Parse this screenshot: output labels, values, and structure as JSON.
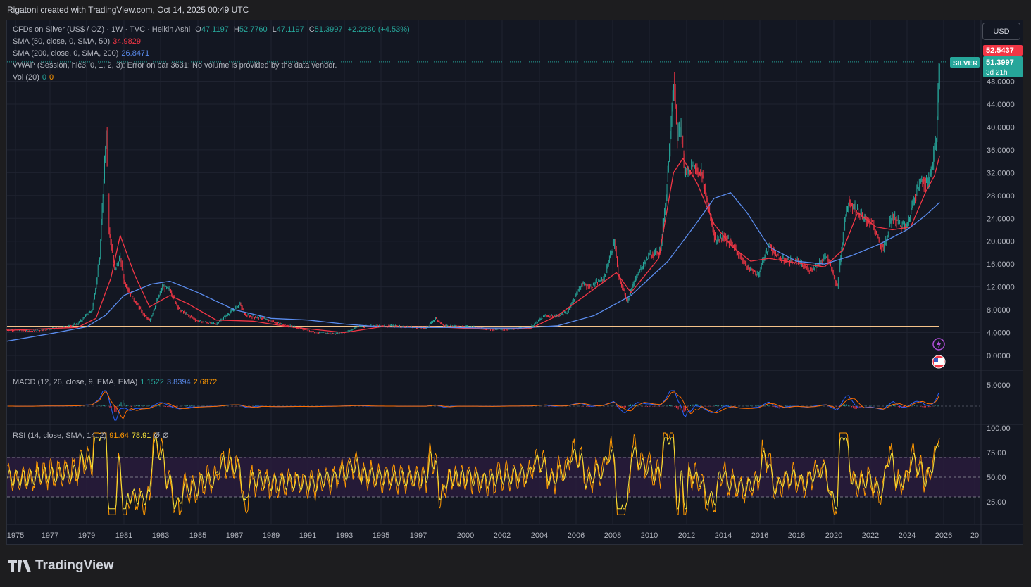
{
  "header": {
    "attribution": "Rigatoni created with TradingView.com, Oct 14, 2025 00:49 UTC"
  },
  "currency_button": "USD",
  "legend": {
    "symbol": "CFDs on Silver (US$ / OZ) · 1W · TVC · Heikin Ashi",
    "o_label": "O",
    "o": "47.1197",
    "h_label": "H",
    "h": "52.7760",
    "l_label": "L",
    "l": "47.1197",
    "c_label": "C",
    "c": "51.3997",
    "change": "+2.2280 (+4.53%)",
    "sma50_label": "SMA (50, close, 0, SMA, 50)",
    "sma50": "34.9829",
    "sma200_label": "SMA (200, close, 0, SMA, 200)",
    "sma200": "26.8471",
    "vwap_label": "VWAP (Session, hlc3, 0, 1, 2, 3): Error on bar 3631: No volume is provided by the data vendor.",
    "vol_label": "Vol (20)",
    "vol_a": "0",
    "vol_b": "0",
    "macd_label": "MACD (12, 26, close, 9, EMA, EMA)",
    "macd": "1.1522",
    "macd_line": "3.8394",
    "macd_signal": "2.6872",
    "rsi_label": "RSI (14, close, SMA, 14, 2)",
    "rsi": "91.64",
    "rsi_ma": "78.91",
    "rsi_na1": "Ø",
    "rsi_na2": "Ø"
  },
  "price_tags": {
    "high": "52.5437",
    "symbol": "SILVER",
    "last": "51.3997",
    "countdown": "3d 21h"
  },
  "colors": {
    "up": "#26a69a",
    "down": "#f23645",
    "sma50": "#f23645",
    "sma200": "#5b8def",
    "rsi": "#ff9800",
    "rsi_ma": "#f5e23b",
    "band": "#2a1b3d",
    "hline": "#f5c38a"
  },
  "footer": {
    "brand": "TradingView"
  },
  "chart_data": {
    "type": "line",
    "title": "CFDs on Silver (US$ / OZ) · 1W · TVC · Heikin Ashi",
    "x_ticks": [
      "1975",
      "1977",
      "1979",
      "1981",
      "1983",
      "1985",
      "1987",
      "1989",
      "1991",
      "1993",
      "1995",
      "1997",
      "2000",
      "2002",
      "2004",
      "2006",
      "2008",
      "2010",
      "2012",
      "2014",
      "2016",
      "2018",
      "2020",
      "2022",
      "2024",
      "2026",
      "20"
    ],
    "y_ticks": [
      "48.0000",
      "44.0000",
      "40.0000",
      "36.0000",
      "32.0000",
      "28.0000",
      "24.0000",
      "20.0000",
      "16.0000",
      "12.0000",
      "8.0000",
      "4.0000",
      "0.0000"
    ],
    "ylim": [
      -2,
      56
    ],
    "horizontal_level": 5.1,
    "series": [
      {
        "name": "CFDs on Silver (US$ / OZ)",
        "x": [
          1974.5,
          1976,
          1977.5,
          1978.5,
          1979.3,
          1979.7,
          1980.05,
          1980.2,
          1980.5,
          1980.8,
          1981.0,
          1981.5,
          1982.0,
          1982.4,
          1982.8,
          1983.1,
          1983.5,
          1984.0,
          1985.0,
          1986.0,
          1987.3,
          1987.6,
          1988.5,
          1989.5,
          1990.5,
          1991.5,
          1992.5,
          1993.2,
          1993.7,
          1994.5,
          1995.5,
          1996.5,
          1997.5,
          1998.1,
          1998.6,
          1999.5,
          2000.5,
          2001.5,
          2002.5,
          2003.5,
          2004.3,
          2004.8,
          2005.5,
          2006.3,
          2006.8,
          2007.5,
          2008.1,
          2008.3,
          2008.8,
          2009.3,
          2010.0,
          2010.6,
          2010.9,
          2011.3,
          2011.5,
          2011.7,
          2011.9,
          2012.3,
          2012.8,
          2013.3,
          2013.6,
          2014.0,
          2014.6,
          2015.3,
          2015.9,
          2016.5,
          2017.0,
          2017.5,
          2018.0,
          2018.6,
          2019.0,
          2019.6,
          2020.2,
          2020.6,
          2020.8,
          2021.2,
          2021.6,
          2022.0,
          2022.7,
          2023.2,
          2023.6,
          2024.0,
          2024.4,
          2024.8,
          2025.1,
          2025.4,
          2025.6,
          2025.78
        ],
        "values": [
          4.5,
          4.3,
          4.8,
          5.5,
          8.0,
          17.0,
          40.0,
          22.0,
          15.0,
          17.0,
          13.0,
          10.0,
          7.5,
          6.0,
          9.5,
          12.0,
          11.5,
          8.0,
          6.0,
          5.5,
          9.0,
          7.0,
          6.5,
          5.5,
          4.8,
          4.0,
          3.8,
          4.2,
          5.0,
          5.2,
          5.2,
          5.0,
          4.8,
          6.5,
          5.2,
          5.1,
          5.0,
          4.5,
          4.6,
          4.9,
          7.0,
          6.8,
          7.5,
          12.5,
          12.0,
          13.5,
          20.0,
          14.0,
          9.5,
          14.0,
          17.5,
          18.5,
          28.0,
          48.0,
          38.0,
          40.0,
          32.0,
          33.0,
          32.0,
          24.0,
          20.0,
          21.0,
          19.0,
          15.5,
          14.0,
          19.5,
          17.0,
          16.5,
          16.5,
          15.0,
          15.5,
          17.5,
          12.0,
          24.0,
          27.0,
          25.5,
          24.0,
          23.5,
          18.5,
          24.5,
          23.0,
          22.5,
          28.0,
          31.0,
          30.0,
          33.5,
          39.0,
          51.4
        ]
      },
      {
        "name": "SMA (50, close, 0, SMA, 50)",
        "x": [
          1974.5,
          1978.5,
          1979.5,
          1980.3,
          1980.8,
          1981.6,
          1982.4,
          1983.5,
          1984.5,
          1986,
          1988,
          1990,
          1993,
          1995,
          1998,
          2001,
          2003.5,
          2005,
          2006.5,
          2008.2,
          2009,
          2010.5,
          2011.3,
          2011.8,
          2012.6,
          2013.5,
          2014.5,
          2015.5,
          2016.5,
          2018,
          2019.5,
          2020.5,
          2021.3,
          2022.3,
          2023.2,
          2024.2,
          2025.0,
          2025.5,
          2025.78
        ],
        "values": [
          4.4,
          4.9,
          6.5,
          13.5,
          21.0,
          14.0,
          8.5,
          10.5,
          9.0,
          6.2,
          6.0,
          5.0,
          4.0,
          5.0,
          5.0,
          4.6,
          4.7,
          7.0,
          10.5,
          14.5,
          11.0,
          17.0,
          32.0,
          34.5,
          30.0,
          23.0,
          19.0,
          16.5,
          17.0,
          16.2,
          15.5,
          18.5,
          25.0,
          22.5,
          22.0,
          22.5,
          28.5,
          31.5,
          35.0
        ]
      },
      {
        "name": "SMA (200, close, 0, SMA, 200)",
        "x": [
          1974.5,
          1977,
          1979,
          1980,
          1981,
          1982.5,
          1983.5,
          1985,
          1987,
          1989,
          1991,
          1993,
          1995,
          1997,
          1999,
          2001,
          2003,
          2005,
          2007,
          2009,
          2011,
          2012.5,
          2013.5,
          2014.4,
          2015.3,
          2016.5,
          2018,
          2019.5,
          2021,
          2022.5,
          2024,
          2025,
          2025.78
        ],
        "values": [
          2.5,
          3.8,
          5.0,
          7.0,
          10.5,
          12.5,
          13.0,
          11.0,
          8.0,
          6.5,
          6.2,
          5.5,
          5.0,
          4.9,
          4.9,
          4.8,
          4.8,
          5.2,
          7.0,
          10.5,
          16.5,
          23.0,
          27.5,
          28.5,
          25.0,
          19.0,
          16.5,
          16.0,
          17.5,
          19.5,
          22.0,
          24.5,
          26.8
        ]
      }
    ],
    "macd": {
      "label": "MACD (12, 26, close, 9, EMA, EMA)",
      "values": [
        "1.1522",
        "3.8394",
        "2.6872"
      ],
      "y_ticks": [
        "5.0000"
      ]
    },
    "rsi": {
      "label": "RSI (14, close, SMA, 14, 2)",
      "value": "91.64",
      "ma": "78.91",
      "levels": [
        70,
        50,
        30
      ],
      "y_ticks": [
        "100.00",
        "75.00",
        "50.00",
        "25.00"
      ]
    }
  }
}
